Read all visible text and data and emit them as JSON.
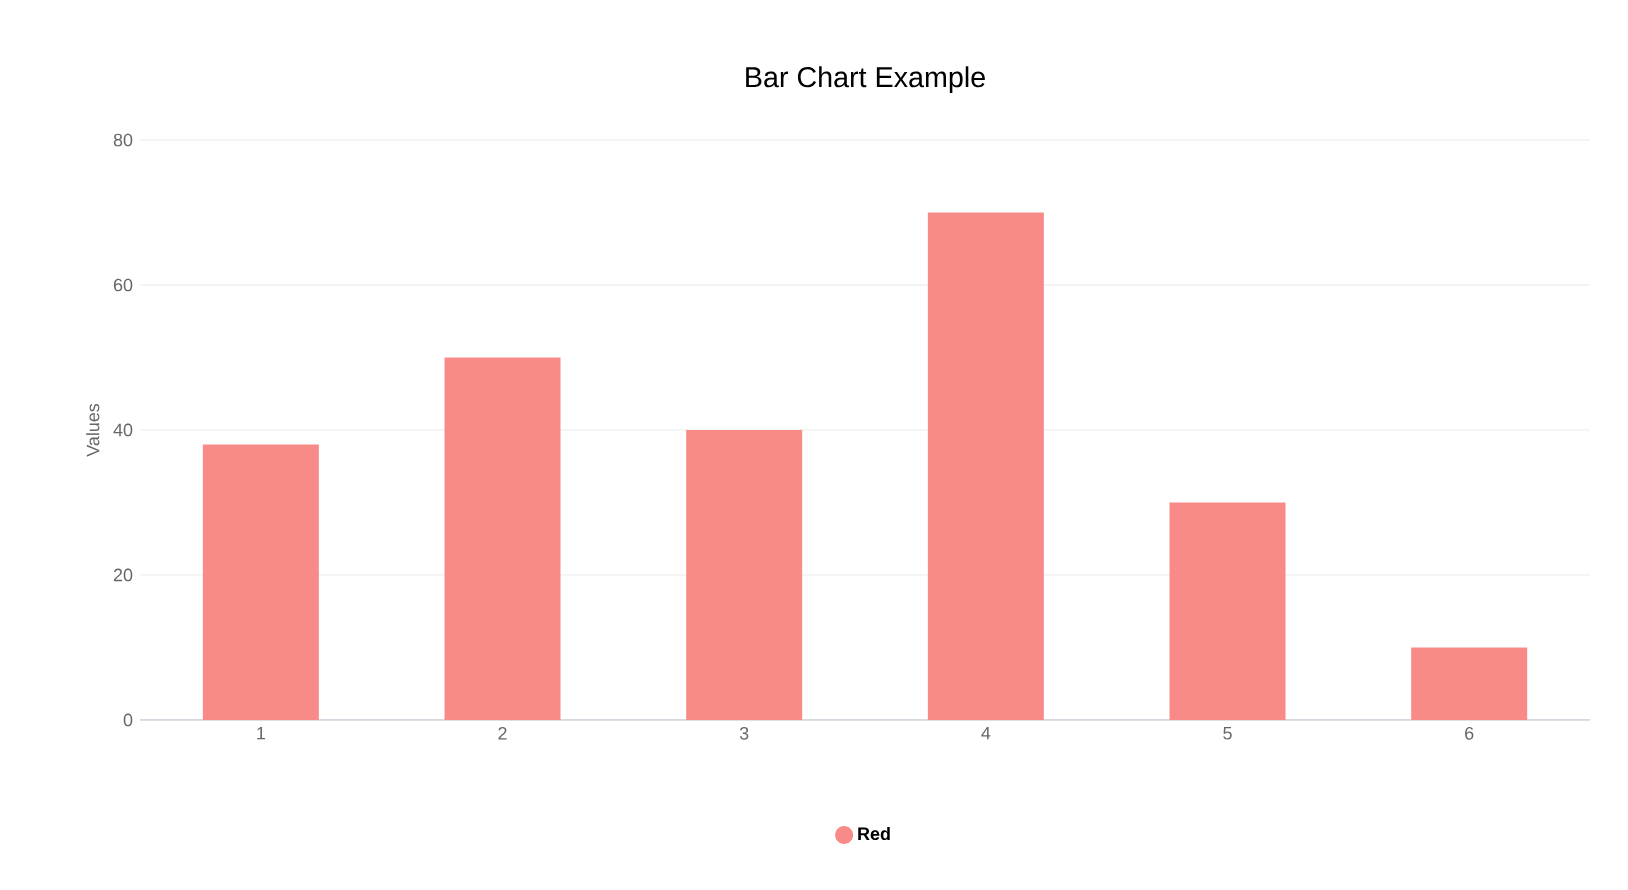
{
  "chart_data": {
    "type": "bar",
    "title": "Bar Chart Example",
    "ylabel": "Values",
    "categories": [
      "1",
      "2",
      "3",
      "4",
      "5",
      "6"
    ],
    "series": [
      {
        "name": "Red",
        "color": "#f88b88",
        "values": [
          38,
          50,
          40,
          70,
          30,
          10
        ]
      }
    ],
    "ylim": [
      0,
      80
    ],
    "yticks": [
      0,
      20,
      40,
      60,
      80
    ],
    "grid": "y",
    "legend": "bottom"
  }
}
